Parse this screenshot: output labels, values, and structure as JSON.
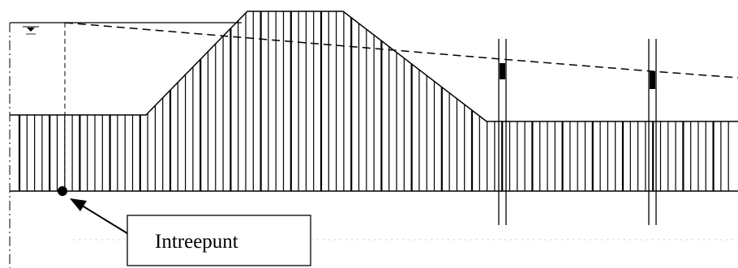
{
  "label": {
    "entry_point": "Intreepunt"
  },
  "colors": {
    "line": "#000000",
    "background": "#ffffff",
    "hatch": "#000000"
  }
}
